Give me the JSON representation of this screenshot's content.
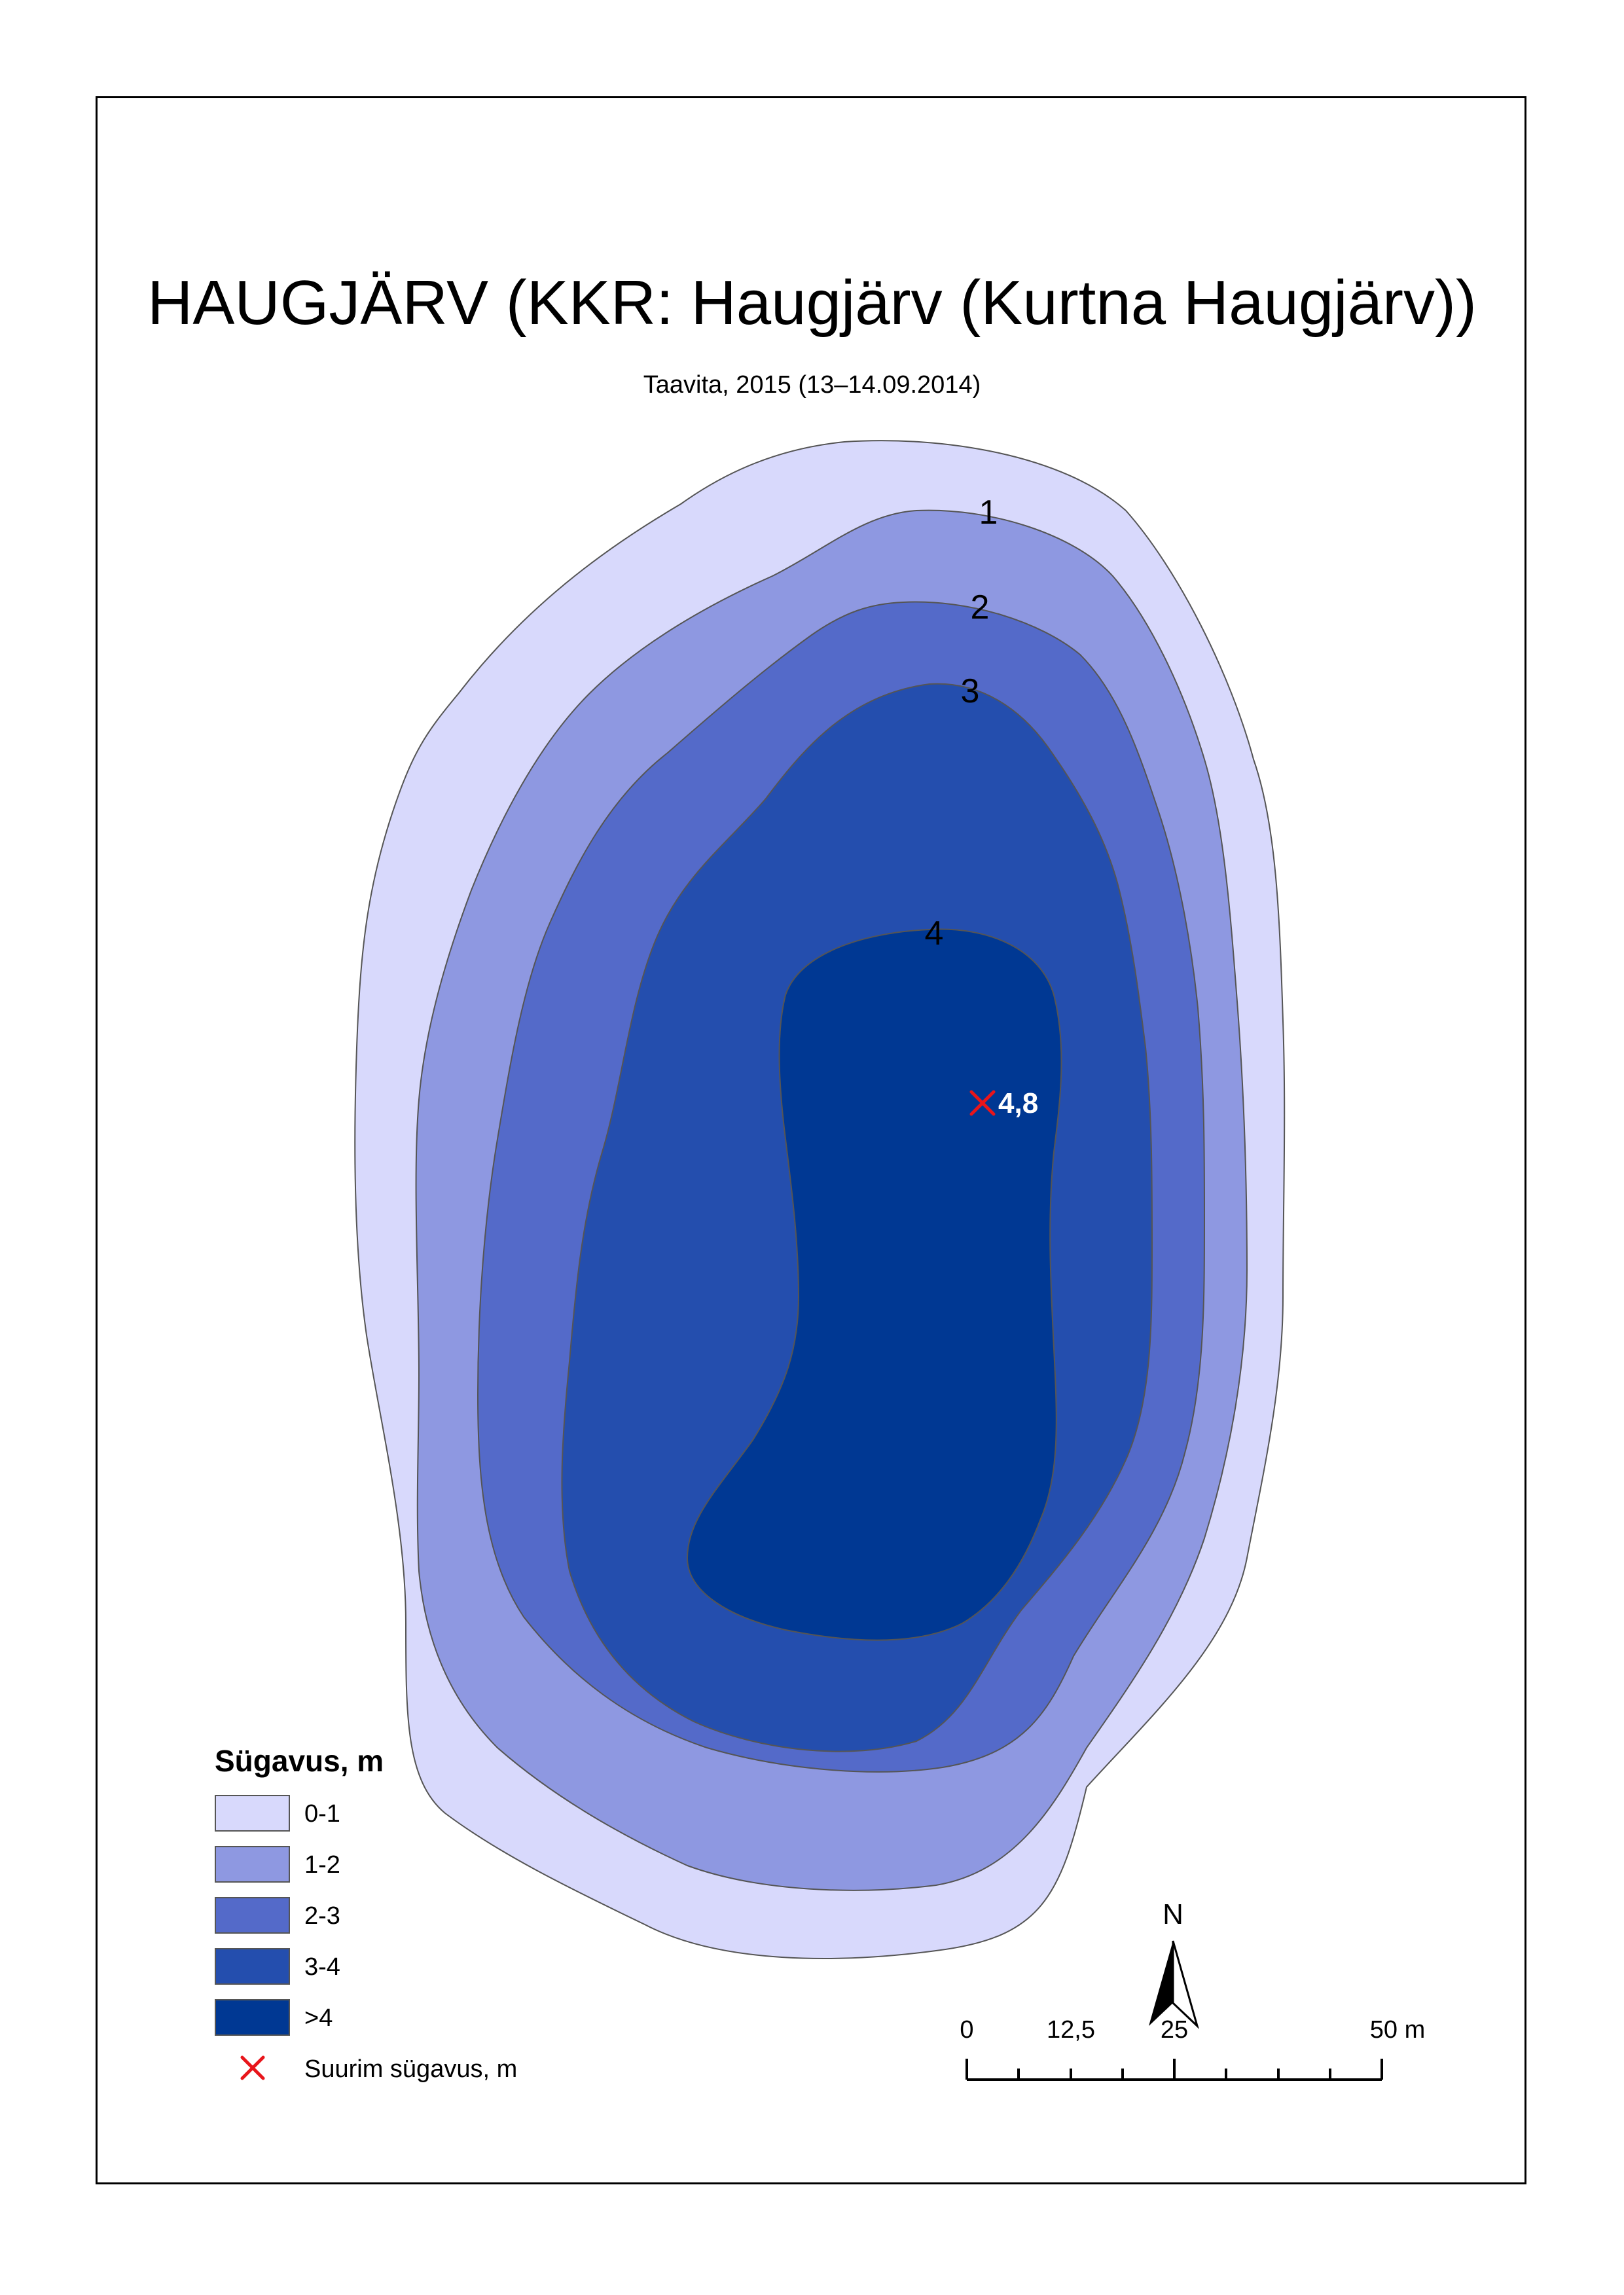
{
  "title": "HAUGJÄRV (KKR: Haugjärv (Kurtna Haugjärv))",
  "subtitle": "Taavita, 2015 (13–14.09.2014)",
  "contours": {
    "labels": [
      "1",
      "2",
      "3",
      "4"
    ]
  },
  "max_depth": {
    "value": "4,8",
    "marker_color": "#e8151b"
  },
  "legend": {
    "title": "Sügavus, m",
    "items": [
      {
        "label": "0-1",
        "color": "#d8d9fc"
      },
      {
        "label": "1-2",
        "color": "#8e98e1"
      },
      {
        "label": "2-3",
        "color": "#546ac9"
      },
      {
        "label": "3-4",
        "color": "#244eae"
      },
      {
        "label": ">4",
        "color": "#003893"
      }
    ],
    "max_depth_label": "Suurim sügavus, m"
  },
  "scale_bar": {
    "labels": [
      "0",
      "12,5",
      "25",
      "50 m"
    ]
  },
  "north_arrow": {
    "label": "N"
  }
}
